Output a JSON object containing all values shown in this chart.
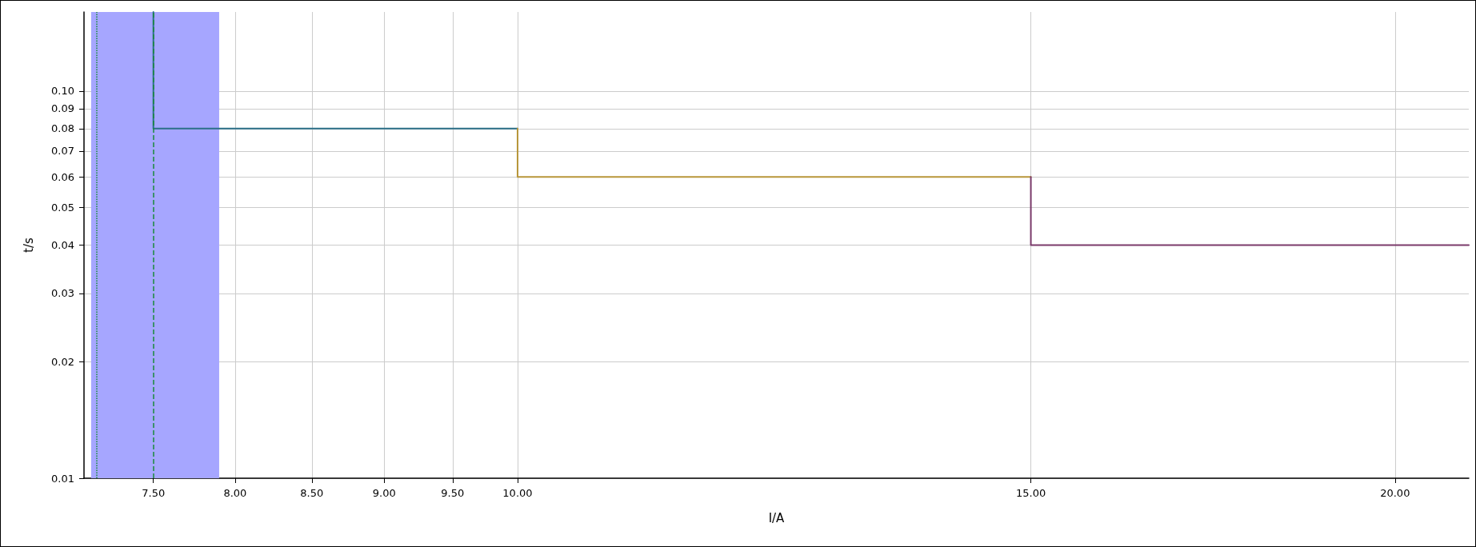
{
  "chart_data": {
    "type": "line",
    "xlabel": "I/A",
    "ylabel": "t/s",
    "log": "xy",
    "grid": true,
    "marker": "none",
    "line_style": "solid",
    "xlim": [
      7.1,
      21.2
    ],
    "ylim": [
      0.01,
      0.16
    ],
    "xticks": [
      {
        "value": 7.5,
        "label": "7.50"
      },
      {
        "value": 8,
        "label": "8.00"
      },
      {
        "value": 8.5,
        "label": "8.50"
      },
      {
        "value": 9,
        "label": "9.00"
      },
      {
        "value": 9.5,
        "label": "9.50"
      },
      {
        "value": 10,
        "label": "10.00"
      },
      {
        "value": 15,
        "label": "15.00"
      },
      {
        "value": 20,
        "label": "20.00"
      }
    ],
    "yticks": [
      0.01,
      0.02,
      0.03,
      0.04,
      0.05,
      0.06,
      0.07,
      0.08,
      0.09,
      {
        "value": 0.1,
        "label": "0.10"
      }
    ],
    "series": [
      {
        "color": "#2b6f88",
        "x": [
          7.5,
          7.5,
          10
        ],
        "values": [
          0.16,
          0.08,
          0.08
        ]
      },
      {
        "color": "#b8963a",
        "x": [
          10,
          10,
          15
        ],
        "values": [
          0.08,
          0.06,
          0.06
        ]
      },
      {
        "color": "#7a3a6a",
        "x": [
          15,
          15,
          21.2
        ],
        "values": [
          0.06,
          0.04,
          0.04
        ]
      }
    ],
    "bands": [
      {
        "axis": "x",
        "from": 7.14,
        "to": 7.9,
        "color": "#a6a6ff"
      }
    ],
    "ref_lines": [
      {
        "axis": "x",
        "value": 7.17,
        "color": "#1a8a3a",
        "line_style": "dotted"
      },
      {
        "axis": "x",
        "value": 7.5,
        "color": "#1a8a3a",
        "line_style": "dashed"
      }
    ]
  }
}
